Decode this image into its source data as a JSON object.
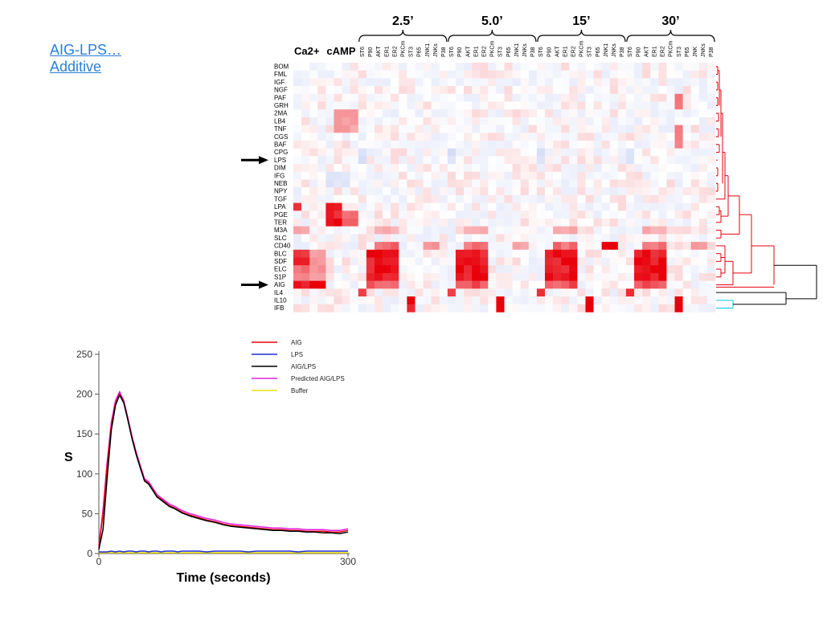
{
  "slide": {
    "link_line1": "AIG-LPS…",
    "link_line2": "Additive"
  },
  "colors": {
    "link": "#2a7fd6",
    "heat_high": "#e8000b",
    "heat_low": "#8fa3e8",
    "dendro_red": "#e8000b",
    "dendro_black": "#000000",
    "dendro_cyan": "#00c8e8"
  },
  "heatmap": {
    "group_headers": [
      "Ca2+",
      "cAMP"
    ],
    "time_groups": [
      "2.5’",
      "5.0’",
      "15’",
      "30’"
    ],
    "time_group_columns": [
      [
        "ST6",
        "P90",
        "AKT",
        "ER1",
        "ER2",
        "PKCm",
        "ST3",
        "P65",
        "JNK1",
        "JNKs",
        "P38"
      ],
      [
        "ST6",
        "P90",
        "AKT",
        "ER1",
        "ER2",
        "PKCm",
        "ST3",
        "P65",
        "JNK1",
        "JNKs",
        "P38"
      ],
      [
        "ST6",
        "P90",
        "AKT",
        "ER1",
        "ER2",
        "PKCm",
        "ST3",
        "P65",
        "JNK1",
        "JNKs",
        "P38"
      ],
      [
        "ST6",
        "P90",
        "AKT",
        "ER1",
        "ER2",
        "PKCm",
        "ST3",
        "P65",
        "JNK",
        "JNKs",
        "P38"
      ]
    ],
    "rows": [
      "BOM",
      "FML",
      "IGF",
      "NGF",
      "PAF",
      "GRH",
      "2MA",
      "LB4",
      "TNF",
      "CGS",
      "BAF",
      "CPG",
      "LPS",
      "DIM",
      "IFG",
      "NEB",
      "NPY",
      "TGF",
      "LPA",
      "PGE",
      "TER",
      "M3A",
      "SLC",
      "CD40",
      "BLC",
      "SDF",
      "ELC",
      "S1P",
      "AIG",
      "IL4",
      "IL10",
      "IFB"
    ],
    "highlighted_rows": [
      "LPS",
      "AIG"
    ],
    "arrow_icon": "right-arrow-icon"
  },
  "chart_data": {
    "type": "line",
    "title": "",
    "xlabel": "Time (seconds)",
    "ylabel": "S",
    "xlim": [
      0,
      300
    ],
    "ylim": [
      0,
      250
    ],
    "x_ticks": [
      0,
      300
    ],
    "y_ticks": [
      0,
      50,
      100,
      150,
      200,
      250
    ],
    "grid": false,
    "legend_position": "top-right",
    "x": [
      0,
      5,
      10,
      15,
      20,
      25,
      30,
      35,
      40,
      45,
      50,
      55,
      60,
      65,
      70,
      75,
      80,
      85,
      90,
      95,
      100,
      110,
      120,
      130,
      140,
      150,
      160,
      170,
      180,
      190,
      200,
      210,
      220,
      230,
      240,
      250,
      260,
      270,
      280,
      290,
      300
    ],
    "series": [
      {
        "name": "AIG",
        "color": "#e8000b",
        "values": [
          8,
          50,
          110,
          160,
          188,
          200,
          190,
          168,
          145,
          125,
          108,
          92,
          88,
          80,
          72,
          68,
          64,
          60,
          58,
          55,
          52,
          48,
          45,
          42,
          40,
          37,
          35,
          34,
          33,
          32,
          31,
          30,
          30,
          29,
          29,
          28,
          28,
          28,
          27,
          27,
          29
        ]
      },
      {
        "name": "LPS",
        "color": "#1f2fd6",
        "values": [
          2,
          2,
          2,
          3,
          2,
          3,
          2,
          3,
          3,
          2,
          3,
          3,
          2,
          3,
          3,
          2,
          3,
          3,
          3,
          2,
          3,
          3,
          3,
          2,
          3,
          3,
          3,
          3,
          2,
          3,
          3,
          3,
          3,
          3,
          2,
          3,
          3,
          3,
          3,
          3,
          3
        ]
      },
      {
        "name": "AIG/LPS",
        "color": "#000000",
        "values": [
          5,
          30,
          95,
          155,
          186,
          199,
          189,
          167,
          144,
          124,
          107,
          91,
          87,
          79,
          71,
          67,
          63,
          59,
          57,
          54,
          51,
          47,
          44,
          41,
          39,
          36,
          34,
          33,
          32,
          31,
          30,
          29,
          29,
          28,
          28,
          27,
          27,
          26,
          26,
          25,
          27
        ]
      },
      {
        "name": "Predicted AIG/LPS",
        "color": "#e020e0",
        "values": [
          10,
          55,
          115,
          165,
          192,
          203,
          192,
          170,
          147,
          127,
          110,
          94,
          90,
          82,
          74,
          70,
          66,
          62,
          60,
          57,
          54,
          50,
          47,
          44,
          42,
          39,
          37,
          36,
          35,
          34,
          33,
          32,
          32,
          31,
          31,
          30,
          30,
          30,
          29,
          29,
          31
        ]
      },
      {
        "name": "Buffer",
        "color": "#f0e010",
        "values": [
          1,
          1,
          1,
          1,
          1,
          1,
          1,
          1,
          1,
          1,
          1,
          1,
          1,
          1,
          1,
          1,
          1,
          1,
          1,
          1,
          1,
          1,
          1,
          1,
          1,
          1,
          1,
          1,
          1,
          1,
          1,
          1,
          1,
          1,
          1,
          1,
          1,
          1,
          1,
          1,
          1
        ]
      }
    ]
  }
}
